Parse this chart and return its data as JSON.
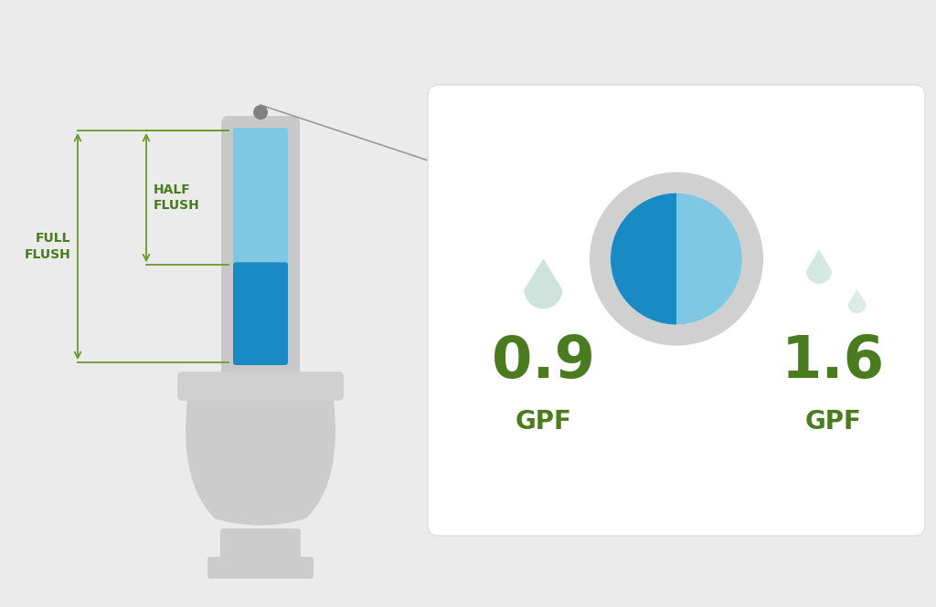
{
  "bg_color": "#ebebeb",
  "card_bg": "#ffffff",
  "green_color": "#4a7c1f",
  "light_blue": "#7ec8e3",
  "dark_blue": "#1a8ac4",
  "gray_ring": "#d0d0d0",
  "drop_color": "#b8d8cc",
  "tank_body_color": "#c8c8c8",
  "tank_cap_color": "#808080",
  "toilet_color": "#cccccc",
  "toilet_seat_color": "#d0d0d0",
  "label_09": "0.9",
  "label_16": "1.6",
  "gpf_label": "GPF",
  "full_flush_label": "FULL\nFLUSH",
  "half_flush_label": "HALF\nFLUSH",
  "connector_color": "#999999",
  "arrow_color": "#6a9a2a"
}
